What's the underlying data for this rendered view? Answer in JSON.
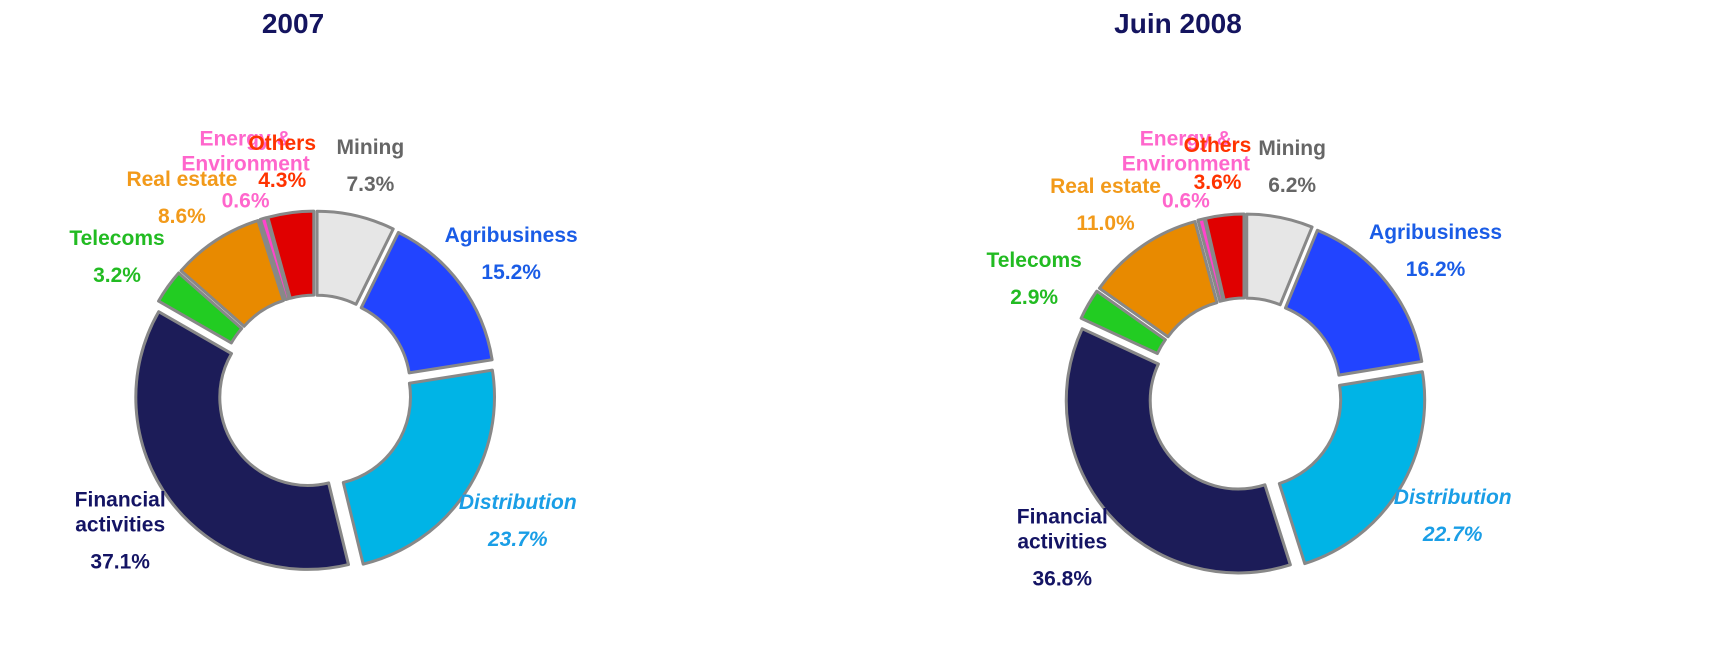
{
  "chart_data": [
    {
      "type": "pie",
      "title": "2007",
      "categories": [
        "Mining",
        "Agribusiness",
        "Distribution",
        "Financial activities",
        "Telecoms",
        "Real estate",
        "Energy & Environment",
        "Others"
      ],
      "values": [
        7.3,
        15.2,
        23.7,
        37.1,
        3.2,
        8.6,
        0.6,
        4.3
      ],
      "value_labels": [
        "7.3%",
        "15.2%",
        "23.7%",
        "37.1%",
        "3.2%",
        "8.6%",
        "0.6%",
        "4.3%"
      ],
      "colors": [
        "#e6e6e6",
        "#2244ff",
        "#00b4e6",
        "#1c1c58",
        "#22cc22",
        "#e88a00",
        "#ff44cc",
        "#e00000"
      ]
    },
    {
      "type": "pie",
      "title": "Juin 2008",
      "categories": [
        "Mining",
        "Agribusiness",
        "Distribution",
        "Financial activities",
        "Telecoms",
        "Real estate",
        "Energy & Environment",
        "Others"
      ],
      "values": [
        6.2,
        16.2,
        22.7,
        36.8,
        2.9,
        11.0,
        0.6,
        3.6
      ],
      "value_labels": [
        "6.2%",
        "16.2%",
        "22.7%",
        "36.8%",
        "2.9%",
        "11.0%",
        "0.6%",
        "3.6%"
      ],
      "colors": [
        "#e6e6e6",
        "#2244ff",
        "#00b4e6",
        "#1c1c58",
        "#22cc22",
        "#e88a00",
        "#ff44cc",
        "#e00000"
      ]
    }
  ]
}
